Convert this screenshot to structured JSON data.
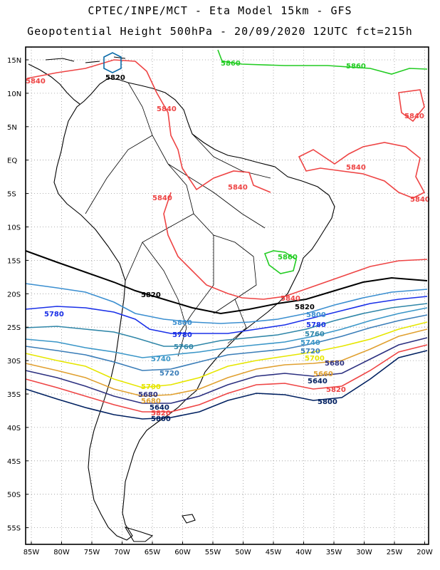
{
  "header": {
    "line1": "CPTEC/INPE/MCT  -  Eta Model 15km  -  GFS",
    "line2": "Geopotential Height 500hPa  - 20/09/2020 12UTC fct=215h"
  },
  "axes": {
    "lat_labels": [
      "15N",
      "10N",
      "5N",
      "EQ",
      "5S",
      "10S",
      "15S",
      "20S",
      "25S",
      "30S",
      "35S",
      "40S",
      "45S",
      "50S",
      "55S"
    ],
    "lon_labels": [
      "85W",
      "80W",
      "75W",
      "70W",
      "65W",
      "60W",
      "55W",
      "50W",
      "45W",
      "40W",
      "35W",
      "30W",
      "25W",
      "20W"
    ]
  },
  "contour_labels": {
    "c5860_a": "5860",
    "c5860_b": "5860",
    "c5860_c": "5860",
    "c5840_a": "5840",
    "c5840_b": "5840",
    "c5840_c": "5840",
    "c5840_d": "5840",
    "c5840_e": "5840",
    "c5840_f": "5840",
    "c5840_g": "5840",
    "c5840_h": "5840",
    "c5820_a": "5820",
    "c5820_b": "5820",
    "c5820_c": "5820",
    "c5820_d": "5820",
    "c5820_e": "5820",
    "c5800_a": "5800",
    "c5800_b": "5800",
    "c5800_c": "5800",
    "c5800_d": "5800",
    "c5780_a": "5780",
    "c5780_b": "5780",
    "c5780_c": "5780",
    "c5760_a": "5760",
    "c5760_b": "5760",
    "c5740_a": "5740",
    "c5740_b": "5740",
    "c5720_a": "5720",
    "c5720_b": "5720",
    "c5700_a": "5700",
    "c5700_b": "5700",
    "c5680_a": "5680",
    "c5680_b": "5680",
    "c5680_c": "5680",
    "c5660_a": "5660",
    "c5640_a": "5640",
    "c5640_b": "5640",
    "c5600_a": "5600"
  },
  "colors": {
    "c5860": "#22cc22",
    "c5840": "#ee4444",
    "c5820": "#000000",
    "c5800": "#2c6fd6",
    "c5780": "#1a30e8",
    "c5760": "#2f86a8",
    "c5740": "#3a96c8",
    "c5720": "#3a7db8",
    "c5700": "#e6e600",
    "c5680": "#e0a030",
    "c5660": "#e0a030",
    "c5640": "#ee4444",
    "c5620": "#ee4444",
    "c5600": "#002060",
    "coast": "#000000",
    "grid": "#888888"
  }
}
